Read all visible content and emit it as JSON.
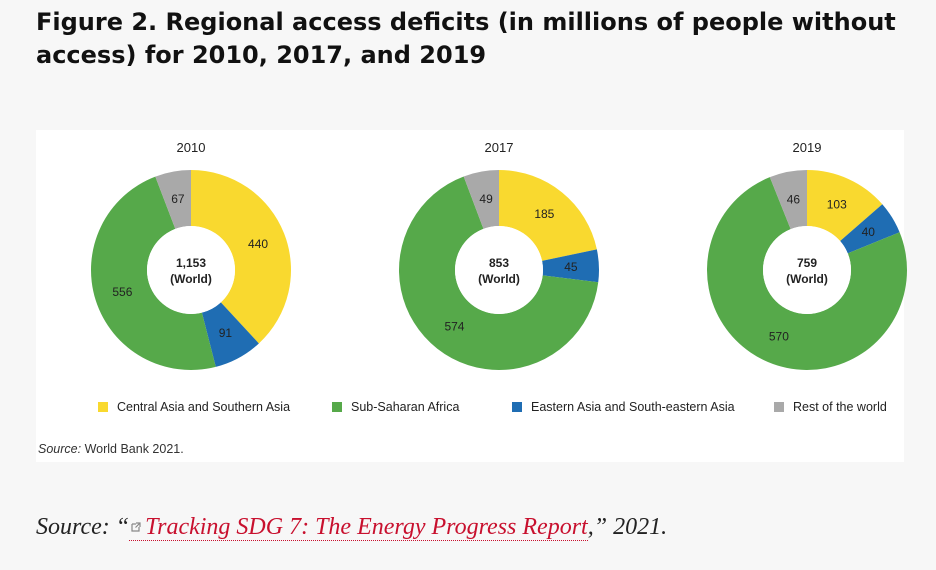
{
  "figure": {
    "title": "Figure 2. Regional access deficits (in millions of people without access) for 2010, 2017, and 2019",
    "inner_source_lead": "Source:",
    "inner_source_text": "World Bank 2021.",
    "caption_lead": "Source: “",
    "caption_link": "Tracking SDG 7: The Energy Progress Report",
    "caption_tail": ",” 2021."
  },
  "colors": {
    "central_southern_asia": "#f9d92f",
    "sub_saharan_africa": "#56a94a",
    "eastern_southeastern_asia": "#1f6db3",
    "rest_of_world": "#a9a9a9"
  },
  "chart_data": {
    "type": "pie",
    "variant": "donut",
    "unit": "millions of people without access",
    "legend": [
      {
        "key": "central_southern_asia",
        "label": "Central Asia and Southern Asia"
      },
      {
        "key": "sub_saharan_africa",
        "label": "Sub-Saharan Africa"
      },
      {
        "key": "eastern_southeastern_asia",
        "label": "Eastern Asia and South-eastern Asia"
      },
      {
        "key": "rest_of_world",
        "label": "Rest of the world"
      }
    ],
    "legend_position": "bottom",
    "charts": [
      {
        "title": "2010",
        "total": "1,153",
        "total_label": "(World)",
        "slices": [
          {
            "key": "central_southern_asia",
            "value": 440
          },
          {
            "key": "eastern_southeastern_asia",
            "value": 91
          },
          {
            "key": "sub_saharan_africa",
            "value": 556
          },
          {
            "key": "rest_of_world",
            "value": 67
          }
        ]
      },
      {
        "title": "2017",
        "total": "853",
        "total_label": "(World)",
        "slices": [
          {
            "key": "central_southern_asia",
            "value": 185
          },
          {
            "key": "eastern_southeastern_asia",
            "value": 45
          },
          {
            "key": "sub_saharan_africa",
            "value": 574
          },
          {
            "key": "rest_of_world",
            "value": 49
          }
        ]
      },
      {
        "title": "2019",
        "total": "759",
        "total_label": "(World)",
        "slices": [
          {
            "key": "central_southern_asia",
            "value": 103
          },
          {
            "key": "eastern_southeastern_asia",
            "value": 40
          },
          {
            "key": "sub_saharan_africa",
            "value": 570
          },
          {
            "key": "rest_of_world",
            "value": 46
          }
        ]
      }
    ]
  }
}
